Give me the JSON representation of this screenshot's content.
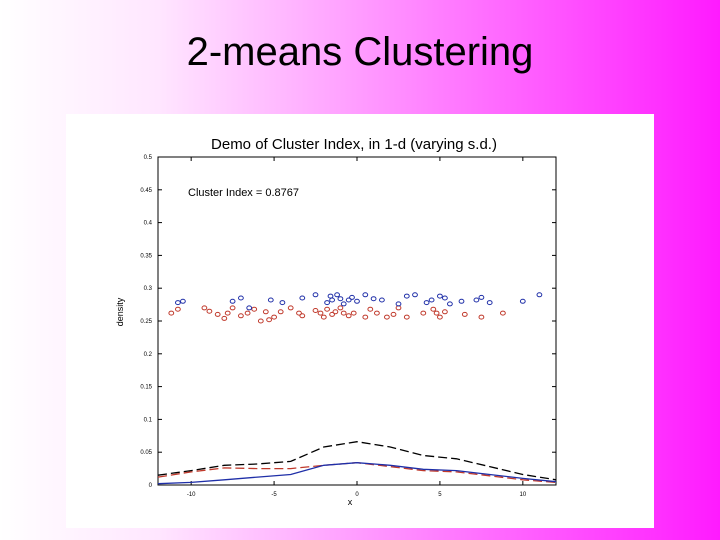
{
  "slide": {
    "title": "2-means Clustering"
  },
  "chart_data": {
    "type": "scatter",
    "title": "Demo of Cluster Index, in 1-d (varying s.d.)",
    "xlabel": "x",
    "ylabel": "density",
    "xlim": [
      -12,
      12
    ],
    "ylim": [
      0,
      0.5
    ],
    "grid": false,
    "x_ticks": [
      "-10",
      "-5",
      "0",
      "5",
      "10"
    ],
    "y_ticks": [
      "0",
      "0.05",
      "0.1",
      "0.15",
      "0.2",
      "0.25",
      "0.3",
      "0.35",
      "0.4",
      "0.45",
      "0.5"
    ],
    "annotation": "Cluster Index = 0.8767",
    "colors": {
      "cluster1": "#c0392b",
      "cluster2": "#1f2fa8",
      "total": "#000000"
    },
    "series": [
      {
        "kind": "points",
        "color": "red",
        "x": [
          -11.2,
          -10.8,
          -9.2,
          -8.9,
          -8.4,
          -8.0,
          -7.8,
          -7.5,
          -7.0,
          -6.6,
          -6.2,
          -5.8,
          -5.5,
          -5.3,
          -5.0,
          -4.6,
          -4.0,
          -3.5,
          -3.3,
          -2.5,
          -2.2,
          -2.0,
          -1.8,
          -1.5,
          -1.3,
          -1.0,
          -0.8,
          -0.5,
          -0.2,
          0.5,
          0.8,
          1.2,
          1.8,
          2.2,
          2.5,
          3.0,
          4.0,
          4.6,
          4.8,
          5.0,
          5.3,
          6.5,
          7.5,
          8.8
        ],
        "y": [
          0.262,
          0.268,
          0.27,
          0.265,
          0.26,
          0.254,
          0.262,
          0.27,
          0.258,
          0.262,
          0.268,
          0.25,
          0.264,
          0.252,
          0.256,
          0.264,
          0.27,
          0.262,
          0.258,
          0.266,
          0.262,
          0.256,
          0.268,
          0.26,
          0.264,
          0.27,
          0.262,
          0.258,
          0.262,
          0.256,
          0.268,
          0.262,
          0.256,
          0.26,
          0.27,
          0.256,
          0.262,
          0.268,
          0.262,
          0.256,
          0.264,
          0.26,
          0.256,
          0.262
        ]
      },
      {
        "kind": "points",
        "color": "blue",
        "x": [
          -10.8,
          -10.5,
          -7.5,
          -7.0,
          -6.5,
          -5.2,
          -4.5,
          -3.3,
          -2.5,
          -1.8,
          -1.6,
          -1.5,
          -1.2,
          -1.0,
          -0.8,
          -0.5,
          -0.3,
          0.0,
          0.5,
          1.0,
          1.5,
          2.5,
          3.0,
          3.5,
          4.2,
          4.5,
          5.0,
          5.3,
          5.6,
          6.3,
          7.2,
          7.5,
          8.0,
          10.0,
          11.0
        ],
        "y": [
          0.278,
          0.28,
          0.28,
          0.285,
          0.27,
          0.282,
          0.278,
          0.285,
          0.29,
          0.278,
          0.288,
          0.282,
          0.29,
          0.284,
          0.276,
          0.282,
          0.286,
          0.28,
          0.29,
          0.284,
          0.282,
          0.276,
          0.288,
          0.29,
          0.278,
          0.282,
          0.288,
          0.285,
          0.276,
          0.28,
          0.282,
          0.286,
          0.278,
          0.28,
          0.29
        ]
      },
      {
        "kind": "line",
        "color": "black",
        "dash": "long",
        "x": [
          -12,
          -10,
          -8,
          -6,
          -4,
          -2,
          0,
          2,
          4,
          6,
          8,
          10,
          12
        ],
        "y": [
          0.015,
          0.022,
          0.03,
          0.032,
          0.036,
          0.058,
          0.066,
          0.058,
          0.045,
          0.04,
          0.028,
          0.016,
          0.008
        ]
      },
      {
        "kind": "line",
        "color": "red",
        "dash": "long",
        "x": [
          -12,
          -10,
          -8,
          -6,
          -4,
          -2,
          0,
          2,
          4,
          6,
          8,
          10,
          12
        ],
        "y": [
          0.012,
          0.02,
          0.026,
          0.025,
          0.025,
          0.03,
          0.034,
          0.028,
          0.022,
          0.02,
          0.014,
          0.008,
          0.004
        ]
      },
      {
        "kind": "line",
        "color": "blue",
        "dash": "solid",
        "x": [
          -12,
          -10,
          -8,
          -6,
          -4,
          -2,
          0,
          2,
          4,
          6,
          8,
          10,
          12
        ],
        "y": [
          0.002,
          0.004,
          0.008,
          0.012,
          0.016,
          0.03,
          0.034,
          0.03,
          0.024,
          0.022,
          0.016,
          0.01,
          0.005
        ]
      }
    ]
  }
}
